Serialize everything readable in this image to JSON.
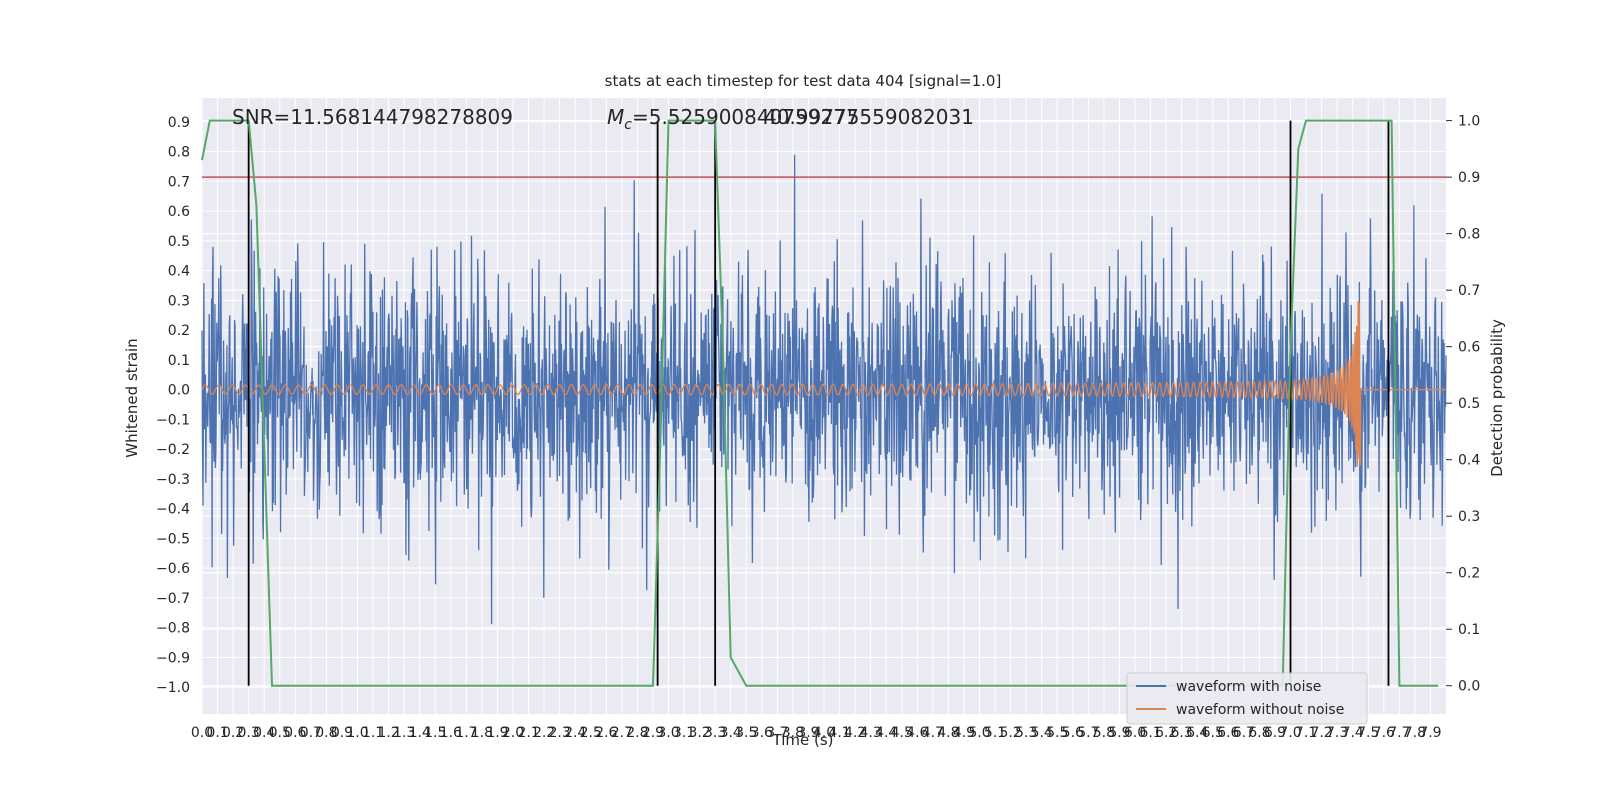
{
  "chart_data": {
    "type": "line",
    "title": "stats at each timestep for test data 404 [signal=1.0]",
    "xlabel": "Time (s)",
    "ylabel": "Whitened strain",
    "y2label": "Detection probability",
    "xlim": [
      0.0,
      8.0
    ],
    "ylim": [
      -1.09,
      0.98
    ],
    "y2lim": [
      -0.05,
      1.04
    ],
    "grid": true,
    "legend_position": "bottom-right",
    "x_ticks": [
      "0.0",
      "0.1",
      "0.2",
      "0.3",
      "0.4",
      "0.5",
      "0.6",
      "0.7",
      "0.8",
      "0.9",
      "1.0",
      "1.1",
      "1.2",
      "1.3",
      "1.4",
      "1.5",
      "1.6",
      "1.7",
      "1.8",
      "1.9",
      "2.0",
      "2.1",
      "2.2",
      "2.3",
      "2.4",
      "2.5",
      "2.6",
      "2.7",
      "2.8",
      "2.9",
      "3.0",
      "3.1",
      "3.2",
      "3.3",
      "3.4",
      "3.5",
      "3.6",
      "3.7",
      "3.8",
      "3.9",
      "4.0",
      "4.1",
      "4.2",
      "4.3",
      "4.4",
      "4.5",
      "4.6",
      "4.7",
      "4.8",
      "4.9",
      "5.0",
      "5.1",
      "5.2",
      "5.3",
      "5.4",
      "5.5",
      "5.6",
      "5.7",
      "5.8",
      "5.9",
      "6.0",
      "6.1",
      "6.2",
      "6.3",
      "6.4",
      "6.5",
      "6.6",
      "6.7",
      "6.8",
      "6.9",
      "7.0",
      "7.1",
      "7.2",
      "7.3",
      "7.4",
      "7.5",
      "7.6",
      "7.7",
      "7.8",
      "7.9"
    ],
    "y_ticks": [
      "0.9",
      "0.8",
      "0.7",
      "0.6",
      "0.5",
      "0.4",
      "0.3",
      "0.2",
      "0.1",
      "0.0",
      "−0.1",
      "−0.2",
      "−0.3",
      "−0.4",
      "−0.5",
      "−0.6",
      "−0.7",
      "−0.8",
      "−0.9",
      "−1.0"
    ],
    "y2_ticks": [
      "1.0",
      "0.9",
      "0.8",
      "0.7",
      "0.6",
      "0.5",
      "0.4",
      "0.3",
      "0.2",
      "0.1",
      "0.0"
    ],
    "annotations": {
      "snr": "SNR=11.568144798278809",
      "chirp_mass": "M_c=5.525900840759277",
      "overlap_value": "40.99775559082031"
    },
    "series": [
      {
        "name": "waveform with noise",
        "color": "#4c72b0",
        "description": "Gaussian noise, amplitude mostly within ±0.5, peaks near 0.9 and −1.0"
      },
      {
        "name": "waveform without noise",
        "color": "#dd8452",
        "chirp_start_amp": 0.015,
        "chirp_peak_amp": 0.3,
        "merger_time": 7.45
      },
      {
        "name": "detection probability",
        "color": "#55a868",
        "axis": "right",
        "x": [
          0.0,
          0.05,
          0.3,
          0.35,
          0.45,
          2.9,
          2.95,
          3.0,
          3.3,
          3.35,
          3.4,
          3.5,
          6.95,
          7.0,
          7.05,
          7.1,
          7.45,
          7.65,
          7.7,
          7.8,
          7.95
        ],
        "y": [
          0.93,
          1.0,
          1.0,
          0.85,
          0.0,
          0.0,
          0.45,
          1.0,
          1.0,
          0.6,
          0.05,
          0.0,
          0.0,
          0.6,
          0.95,
          1.0,
          1.0,
          1.0,
          0.0,
          0.0,
          0.0
        ]
      },
      {
        "name": "threshold",
        "color": "#c44e52",
        "axis": "right",
        "value": 0.9
      }
    ],
    "vertical_markers": [
      0.3,
      2.93,
      3.3,
      7.0,
      7.63
    ]
  },
  "legend": {
    "item1": "waveform with noise",
    "item2": "waveform without noise"
  }
}
